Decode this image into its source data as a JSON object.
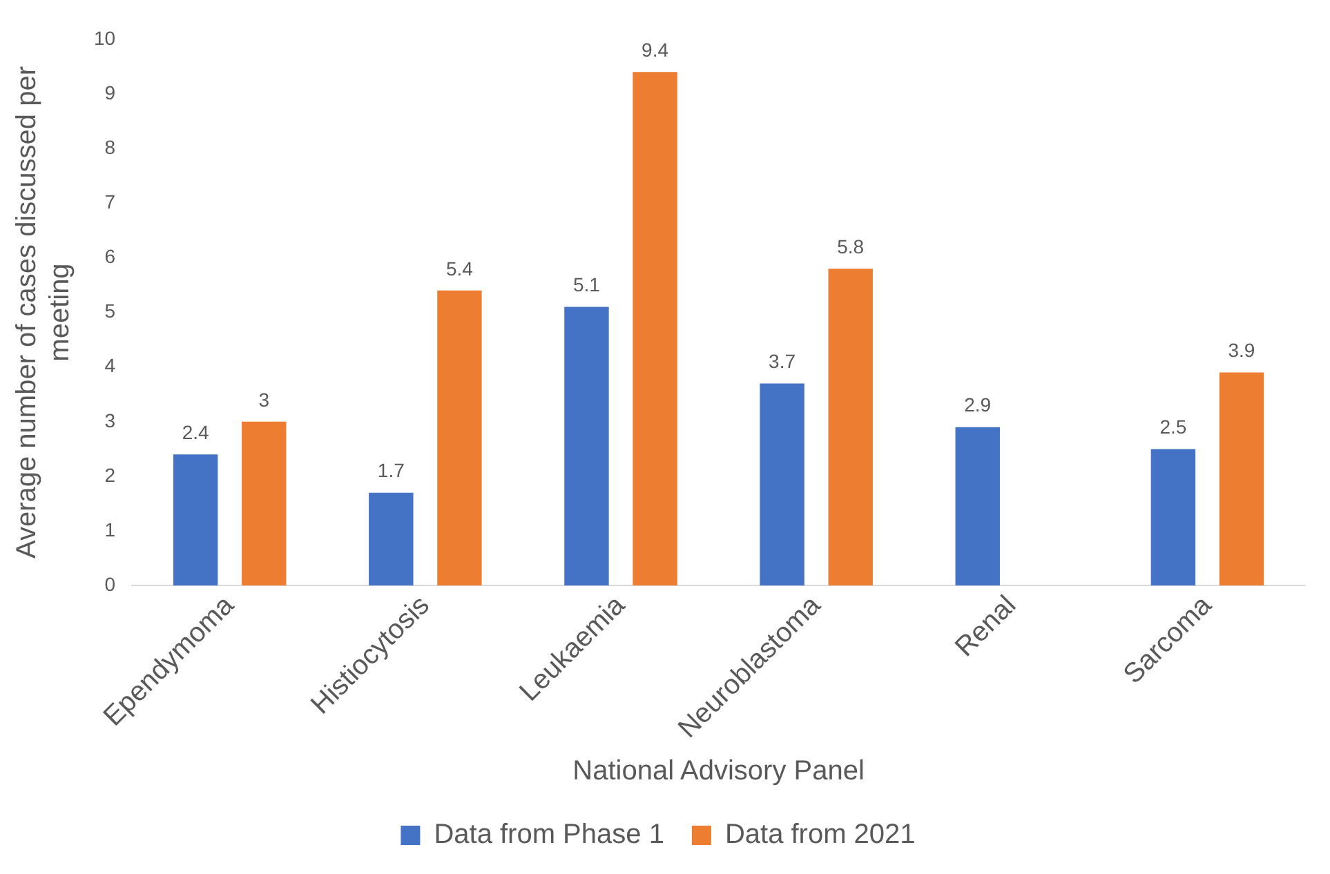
{
  "chart_data": {
    "type": "bar",
    "xlabel": "National Advisory Panel",
    "ylabel": "Average number of cases discussed per meeting",
    "categories": [
      "Ependymoma",
      "Histiocytosis",
      "Leukaemia",
      "Neuroblastoma",
      "Renal",
      "Sarcoma"
    ],
    "series": [
      {
        "name": "Data from Phase 1",
        "color": "#4472c4",
        "values": [
          2.4,
          1.7,
          5.1,
          3.7,
          2.9,
          2.5
        ]
      },
      {
        "name": "Data from 2021",
        "color": "#ed7d31",
        "values": [
          3,
          5.4,
          9.4,
          5.8,
          null,
          3.9
        ]
      }
    ],
    "ylim": [
      0,
      10
    ],
    "yticks": [
      0,
      1,
      2,
      3,
      4,
      5,
      6,
      7,
      8,
      9,
      10
    ],
    "grid": false,
    "legend": "bottom",
    "data_labels": true
  }
}
